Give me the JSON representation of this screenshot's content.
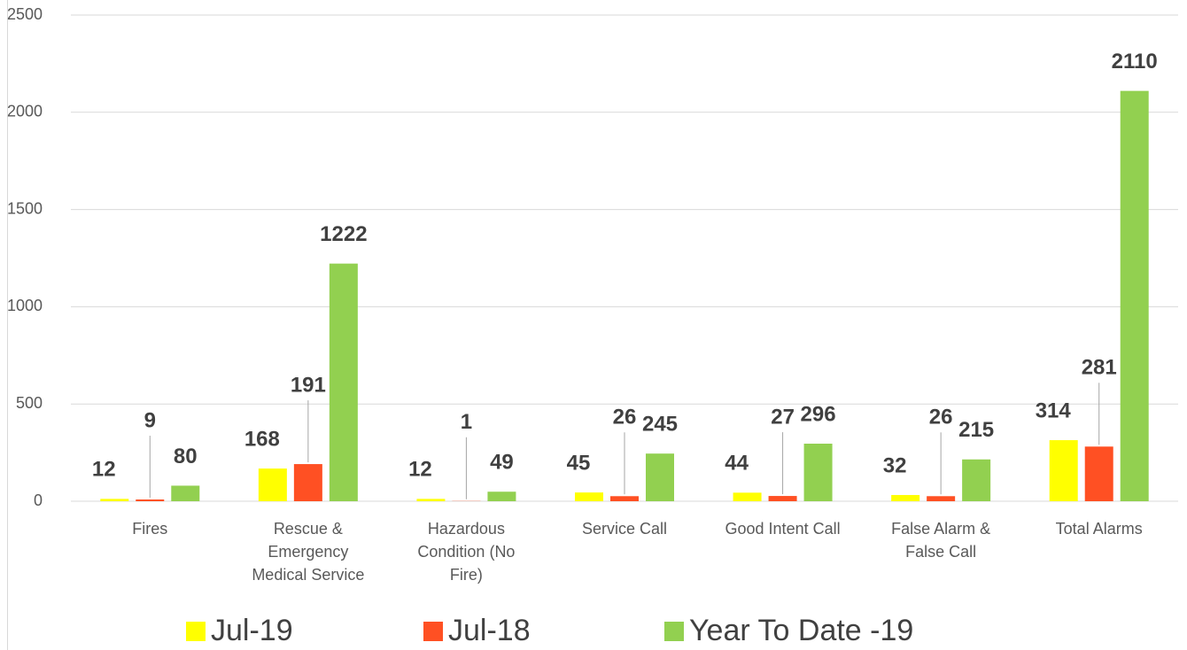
{
  "chart_data": {
    "type": "bar",
    "categories": [
      "Fires",
      "Rescue & Emergency Medical Service",
      "Hazardous Condition (No Fire)",
      "Service Call",
      "Good Intent Call",
      "False Alarm & False Call",
      "Total Alarms"
    ],
    "series": [
      {
        "name": "Jul-19",
        "color": "#ffff00",
        "values": [
          12,
          168,
          12,
          45,
          44,
          32,
          314
        ]
      },
      {
        "name": "Jul-18",
        "color": "#ff5023",
        "values": [
          9,
          191,
          1,
          26,
          27,
          26,
          281
        ]
      },
      {
        "name": "Year To Date -19",
        "color": "#92d050",
        "values": [
          80,
          1222,
          49,
          245,
          296,
          215,
          2110
        ]
      }
    ],
    "ylim": [
      0,
      2500
    ],
    "yticks": [
      0,
      500,
      1000,
      1500,
      2000,
      2500
    ],
    "grid": true,
    "legend": "bottom"
  }
}
